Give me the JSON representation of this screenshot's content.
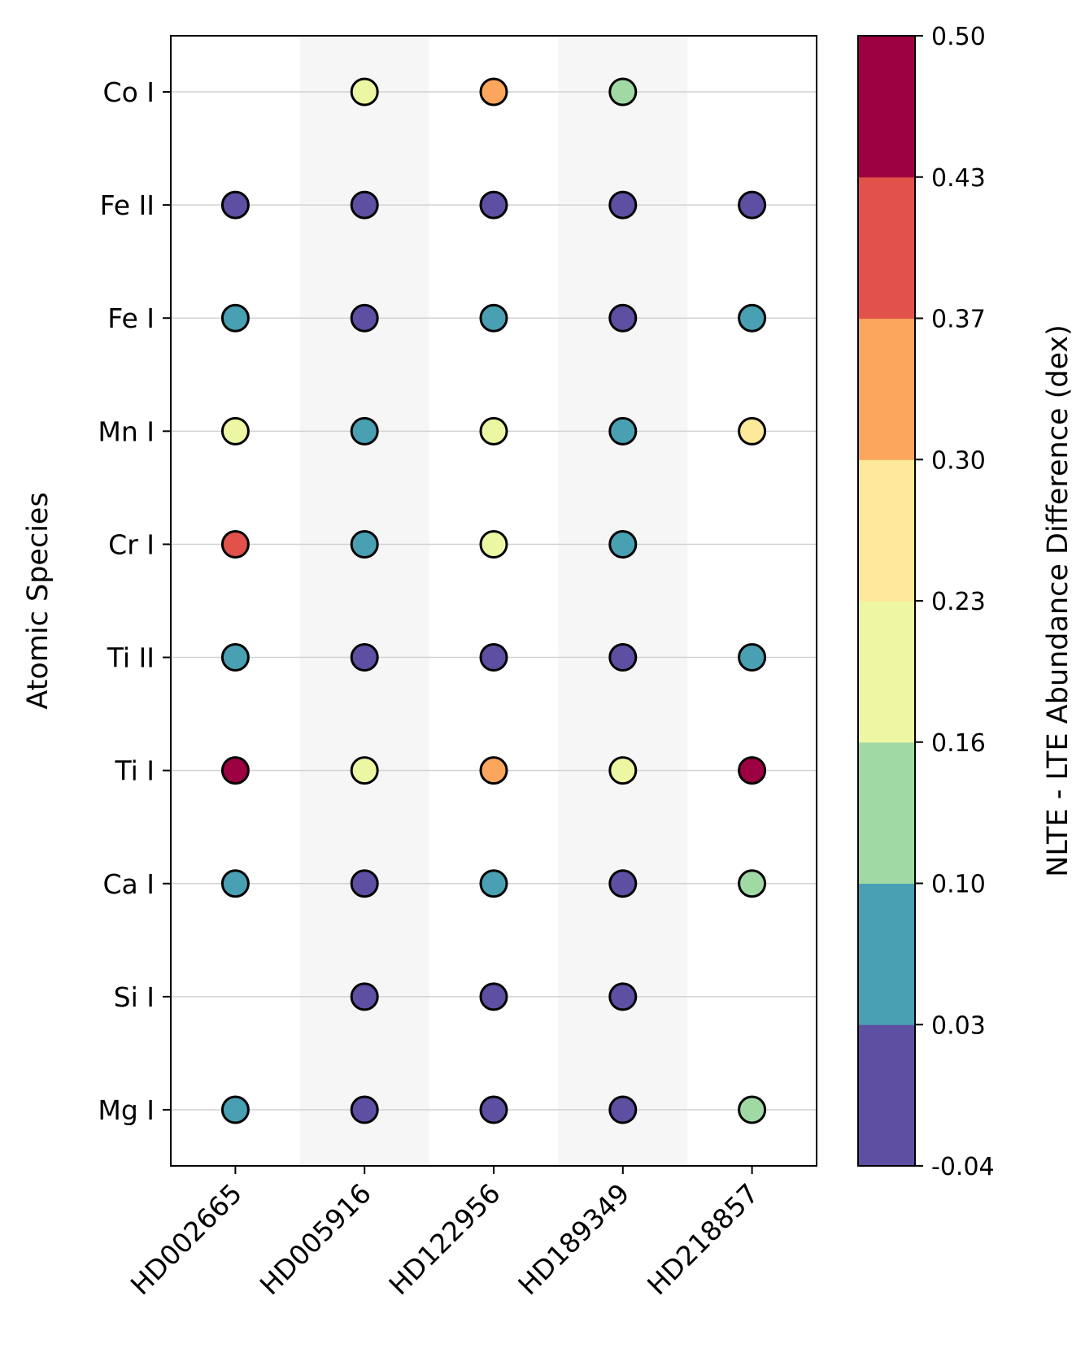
{
  "chart_data": {
    "type": "scatter",
    "title": "",
    "xlabel": "",
    "ylabel": "Atomic Species",
    "stars": [
      "HD002665",
      "HD005916",
      "HD122956",
      "HD189349",
      "HD218857"
    ],
    "species": [
      "Mg I",
      "Si I",
      "Ca I",
      "Ti I",
      "Ti II",
      "Cr I",
      "Mn I",
      "Fe I",
      "Fe II",
      "Co I"
    ],
    "values": [
      {
        "star": "HD002665",
        "Mg I": 0.06,
        "Si I": null,
        "Ca I": 0.06,
        "Ti I": 0.47,
        "Ti II": 0.06,
        "Cr I": 0.4,
        "Mn I": 0.2,
        "Fe I": 0.06,
        "Fe II": -0.01,
        "Co I": null
      },
      {
        "star": "HD005916",
        "Mg I": -0.01,
        "Si I": -0.01,
        "Ca I": -0.01,
        "Ti I": 0.2,
        "Ti II": -0.01,
        "Cr I": 0.06,
        "Mn I": 0.06,
        "Fe I": -0.01,
        "Fe II": -0.01,
        "Co I": 0.2
      },
      {
        "star": "HD122956",
        "Mg I": -0.01,
        "Si I": -0.01,
        "Ca I": 0.06,
        "Ti I": 0.33,
        "Ti II": -0.01,
        "Cr I": 0.2,
        "Mn I": 0.2,
        "Fe I": 0.06,
        "Fe II": -0.01,
        "Co I": 0.33
      },
      {
        "star": "HD189349",
        "Mg I": -0.01,
        "Si I": -0.01,
        "Ca I": -0.01,
        "Ti I": 0.2,
        "Ti II": -0.01,
        "Cr I": 0.06,
        "Mn I": 0.06,
        "Fe I": -0.01,
        "Fe II": -0.01,
        "Co I": 0.13
      },
      {
        "star": "HD218857",
        "Mg I": 0.13,
        "Si I": null,
        "Ca I": 0.13,
        "Ti I": 0.47,
        "Ti II": 0.06,
        "Cr I": null,
        "Mn I": 0.27,
        "Fe I": 0.06,
        "Fe II": -0.01,
        "Co I": null
      }
    ],
    "colorbar": {
      "label": "NLTE - LTE Abundance Difference (dex)",
      "range": [
        -0.04,
        0.5
      ],
      "boundaries": [
        -0.04,
        0.03,
        0.1,
        0.16,
        0.23,
        0.3,
        0.37,
        0.43,
        0.5
      ],
      "tick_labels": [
        "-0.04",
        "0.03",
        "0.10",
        "0.16",
        "0.23",
        "0.30",
        "0.37",
        "0.43",
        "0.50"
      ],
      "colors": [
        "#5e4fa2",
        "#48a0b2",
        "#a1d9a4",
        "#edf7a3",
        "#fee899",
        "#fca55d",
        "#e2514a",
        "#9e0142"
      ]
    },
    "column_shading": "alternate-light-gray",
    "grid": "horizontal"
  }
}
